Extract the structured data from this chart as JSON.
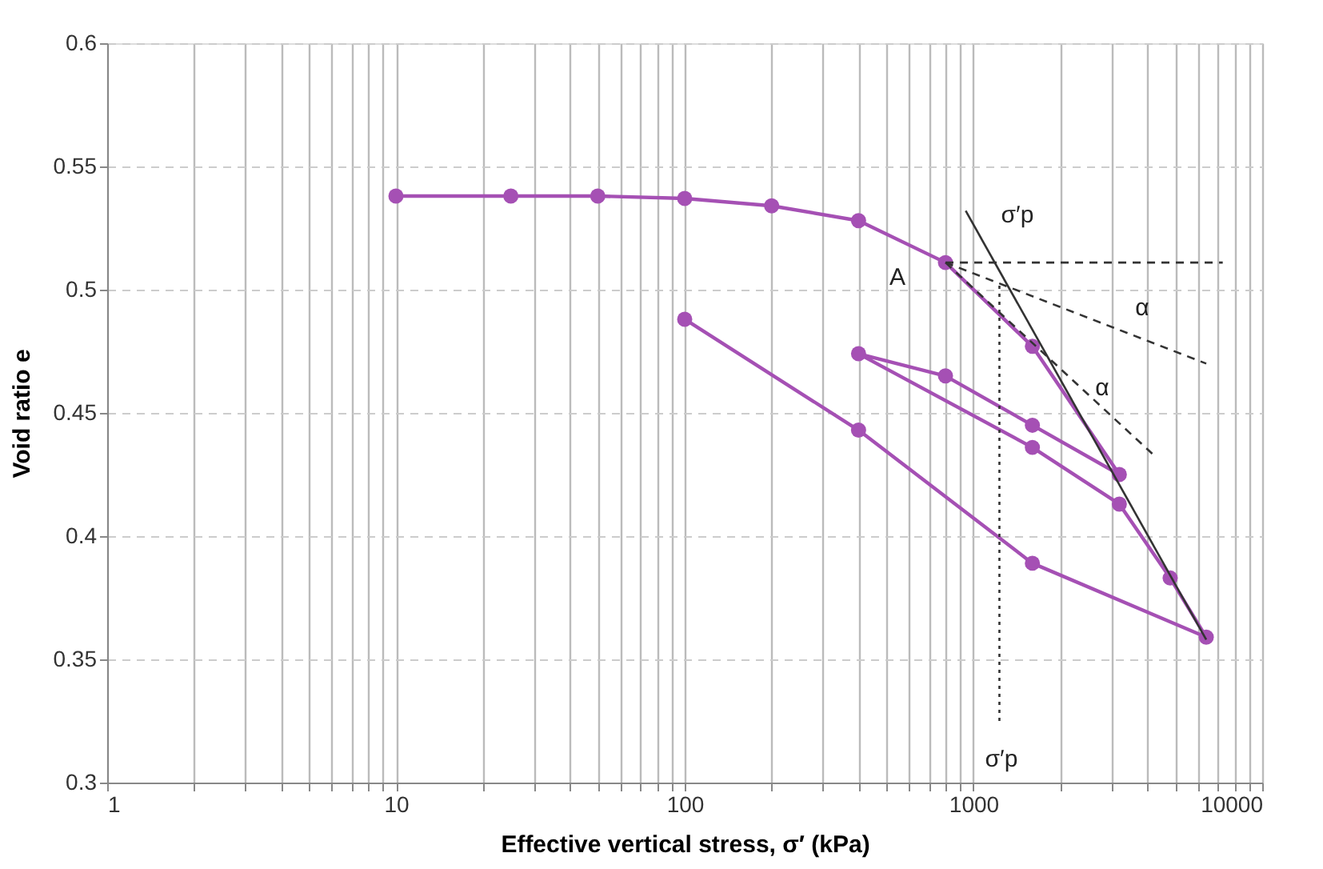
{
  "chart_data": {
    "type": "line",
    "xlabel": "Effective vertical stress, σ′ (kPa)",
    "ylabel": "Void ratio e",
    "log": "x",
    "grid": true,
    "marker": "circle",
    "line_style": "solid",
    "xlim": [
      1,
      10000
    ],
    "ylim": [
      0.3,
      0.6
    ],
    "xticks": [
      1,
      {
        "value": 2,
        "label": null
      },
      {
        "value": 3,
        "label": null
      },
      {
        "value": 4,
        "label": null
      },
      {
        "value": 5,
        "label": null
      },
      {
        "value": 6,
        "label": null
      },
      {
        "value": 7,
        "label": null
      },
      {
        "value": 8,
        "label": null
      },
      {
        "value": 9,
        "label": null
      },
      10,
      {
        "value": 20,
        "label": null
      },
      {
        "value": 30,
        "label": null
      },
      {
        "value": 40,
        "label": null
      },
      {
        "value": 50,
        "label": null
      },
      {
        "value": 60,
        "label": null
      },
      {
        "value": 70,
        "label": null
      },
      {
        "value": 80,
        "label": null
      },
      {
        "value": 90,
        "label": null
      },
      100,
      {
        "value": 200,
        "label": null
      },
      {
        "value": 300,
        "label": null
      },
      {
        "value": 400,
        "label": null
      },
      {
        "value": 500,
        "label": null
      },
      {
        "value": 600,
        "label": null
      },
      {
        "value": 700,
        "label": null
      },
      {
        "value": 800,
        "label": null
      },
      {
        "value": 900,
        "label": null
      },
      1000,
      {
        "value": 2000,
        "label": null
      },
      {
        "value": 3000,
        "label": null
      },
      {
        "value": 4000,
        "label": null
      },
      {
        "value": 5000,
        "label": null
      },
      {
        "value": 6000,
        "label": null
      },
      {
        "value": 7000,
        "label": null
      },
      {
        "value": 8000,
        "label": null
      },
      {
        "value": 9000,
        "label": null
      },
      10000
    ],
    "yticks": [
      0.3,
      0.35,
      0.4,
      0.45,
      0.5,
      0.55,
      0.6
    ],
    "series": [
      {
        "color": "#a550b4",
        "x": [
          10,
          25,
          50,
          100,
          200,
          400,
          800,
          1600,
          3200,
          1600,
          800,
          400,
          1600,
          3200,
          4800,
          6400,
          1600,
          400,
          100
        ],
        "values": [
          0.538,
          0.538,
          0.538,
          0.537,
          0.534,
          0.528,
          0.511,
          0.477,
          0.425,
          0.445,
          0.465,
          0.474,
          0.436,
          0.413,
          0.383,
          0.359,
          0.389,
          0.443,
          0.488
        ]
      },
      {
        "type": "line",
        "color": "#333333",
        "marker": "none",
        "line_style": "solid",
        "x": [
          940,
          6400
        ],
        "values": [
          0.532,
          0.358
        ]
      },
      {
        "type": "line",
        "color": "#333333",
        "marker": "none",
        "line_style": "dashed",
        "x": [
          800,
          7300
        ],
        "values": [
          0.511,
          0.511
        ]
      },
      {
        "type": "line",
        "color": "#333333",
        "marker": "none",
        "line_style": "dashed",
        "x": [
          800,
          6400
        ],
        "values": [
          0.511,
          0.47
        ]
      },
      {
        "type": "line",
        "color": "#333333",
        "marker": "none",
        "line_style": "dashed",
        "x": [
          800,
          4200
        ],
        "values": [
          0.511,
          0.433
        ]
      },
      {
        "type": "line",
        "color": "#333333",
        "marker": "none",
        "line_style": "dotted",
        "x": [
          1230,
          1230
        ],
        "values": [
          0.325,
          0.502
        ]
      }
    ],
    "annotations": [
      "A",
      "σ′p",
      "α",
      "α",
      "σ′p"
    ]
  }
}
